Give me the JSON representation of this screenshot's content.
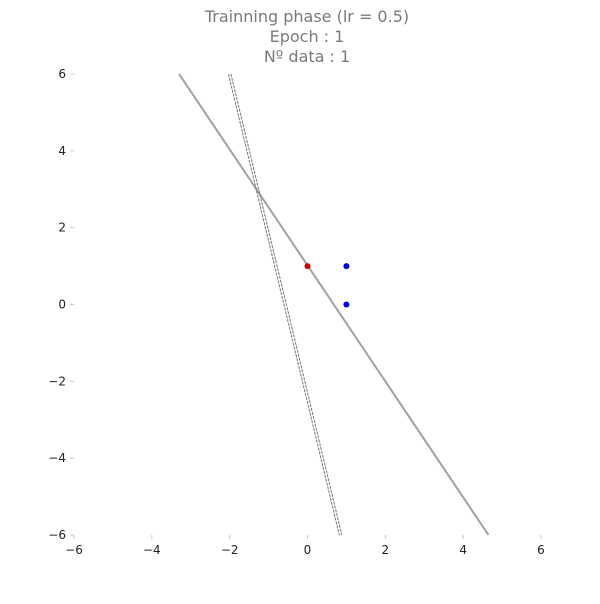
{
  "chart_data": {
    "type": "scatter",
    "title_lines": [
      "Trainning phase (lr = 0.5)",
      "Epoch : 1",
      "Nº data : 1"
    ],
    "xlim": [
      -6,
      6
    ],
    "ylim": [
      -6,
      6
    ],
    "x_ticks": [
      -6,
      -4,
      -2,
      0,
      2,
      4,
      6
    ],
    "y_ticks": [
      -6,
      -4,
      -2,
      0,
      2,
      4,
      6
    ],
    "grid": false,
    "series": [
      {
        "color": "#cc0000",
        "points": [
          [
            0,
            1
          ]
        ]
      },
      {
        "color": "#0000dd",
        "points": [
          [
            1,
            1
          ],
          [
            1,
            0
          ]
        ]
      }
    ],
    "lines": [
      {
        "style": "solid",
        "color": "#a0a0a0",
        "points": [
          [
            -3.3,
            6
          ],
          [
            4.65,
            -6
          ]
        ]
      },
      {
        "style": "double-dashed",
        "color": "#6a6a6a",
        "points": [
          [
            -2,
            6
          ],
          [
            0.85,
            -6
          ]
        ]
      }
    ]
  }
}
